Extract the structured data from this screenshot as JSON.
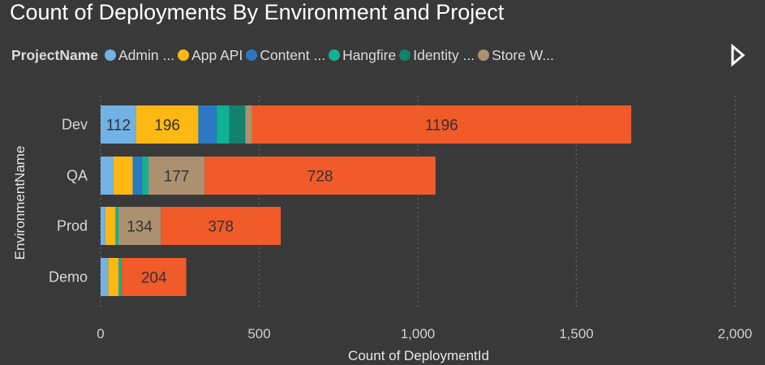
{
  "chart_data": {
    "type": "bar",
    "orientation": "horizontal",
    "stacked": true,
    "title": "Count of Deployments By Environment and Project",
    "legend_title": "ProjectName",
    "xlabel": "Count of DeploymentId",
    "ylabel": "EnvironmentName",
    "xlim": [
      0,
      2000
    ],
    "xticks": [
      0,
      500,
      1000,
      1500,
      2000
    ],
    "xtick_labels": [
      "0",
      "500",
      "1,000",
      "1,500",
      "2,000"
    ],
    "grid": true,
    "legend_position": "top",
    "categories": [
      "Dev",
      "QA",
      "Prod",
      "Demo"
    ],
    "series": [
      {
        "name": "Admin ...",
        "color": "#72b2e4",
        "values": [
          112,
          41,
          15,
          24
        ],
        "labels": [
          true,
          false,
          false,
          false
        ]
      },
      {
        "name": "App API",
        "color": "#fdb813",
        "values": [
          196,
          60,
          32,
          33
        ],
        "labels": [
          true,
          false,
          false,
          false
        ]
      },
      {
        "name": "Content ...",
        "color": "#2b78c2",
        "values": [
          58,
          30,
          0,
          0
        ],
        "labels": [
          false,
          false,
          false,
          false
        ]
      },
      {
        "name": "Hangfire",
        "color": "#10b294",
        "values": [
          40,
          20,
          9,
          9
        ],
        "labels": [
          false,
          false,
          false,
          false
        ]
      },
      {
        "name": "Identity ...",
        "color": "#13826c",
        "values": [
          50,
          0,
          0,
          0
        ],
        "labels": [
          false,
          false,
          false,
          false
        ]
      },
      {
        "name": "Store W...",
        "color": "#ab916f",
        "values": [
          21,
          177,
          134,
          0
        ],
        "labels": [
          false,
          true,
          true,
          false
        ]
      },
      {
        "name": "",
        "color": "#f15a29",
        "values": [
          1196,
          728,
          378,
          204
        ],
        "labels": [
          true,
          true,
          true,
          true
        ]
      }
    ]
  }
}
